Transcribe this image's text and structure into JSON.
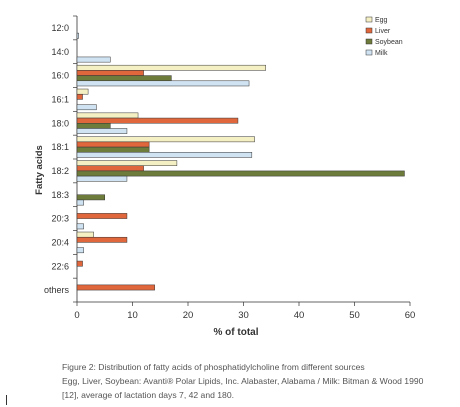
{
  "chart_data": {
    "type": "bar",
    "orientation": "horizontal",
    "ylabel": "Fatty acids",
    "xlabel": "% of total",
    "categories": [
      "12:0",
      "14:0",
      "16:0",
      "16:1",
      "18:0",
      "18:1",
      "18:2",
      "18:3",
      "20:3",
      "20:4",
      "22:6",
      "others"
    ],
    "series": [
      {
        "name": "Egg",
        "color": "#f5f0c4",
        "values": [
          0,
          0,
          34,
          2,
          11,
          32,
          18,
          0,
          0,
          3,
          0,
          0
        ]
      },
      {
        "name": "Liver",
        "color": "#e0663c",
        "values": [
          0,
          0,
          12,
          1,
          29,
          13,
          12,
          0,
          9,
          9,
          1,
          14
        ]
      },
      {
        "name": "Soybean",
        "color": "#6d7b3b",
        "values": [
          0,
          0,
          17,
          0,
          6,
          13,
          59,
          5,
          0,
          0,
          0,
          0
        ]
      },
      {
        "name": "Milk",
        "color": "#cfe3f2",
        "values": [
          0.3,
          6,
          31,
          3.5,
          9,
          31.5,
          9,
          1.2,
          1.2,
          1.2,
          0,
          0
        ]
      }
    ],
    "xlim": [
      0,
      60
    ],
    "xticks": [
      0,
      10,
      20,
      30,
      40,
      50,
      60
    ],
    "grid": false,
    "legend": "top-right"
  },
  "caption": {
    "line1": "Figure 2: Distribution of fatty acids of phosphatidylcholine from different sources",
    "line2": "Egg, Liver, Soybean: Avanti® Polar Lipids, Inc. Alabaster, Alabama / Milk: Bitman & Wood 1990",
    "line3": "[12], average of lactation days 7, 42 and 180."
  }
}
